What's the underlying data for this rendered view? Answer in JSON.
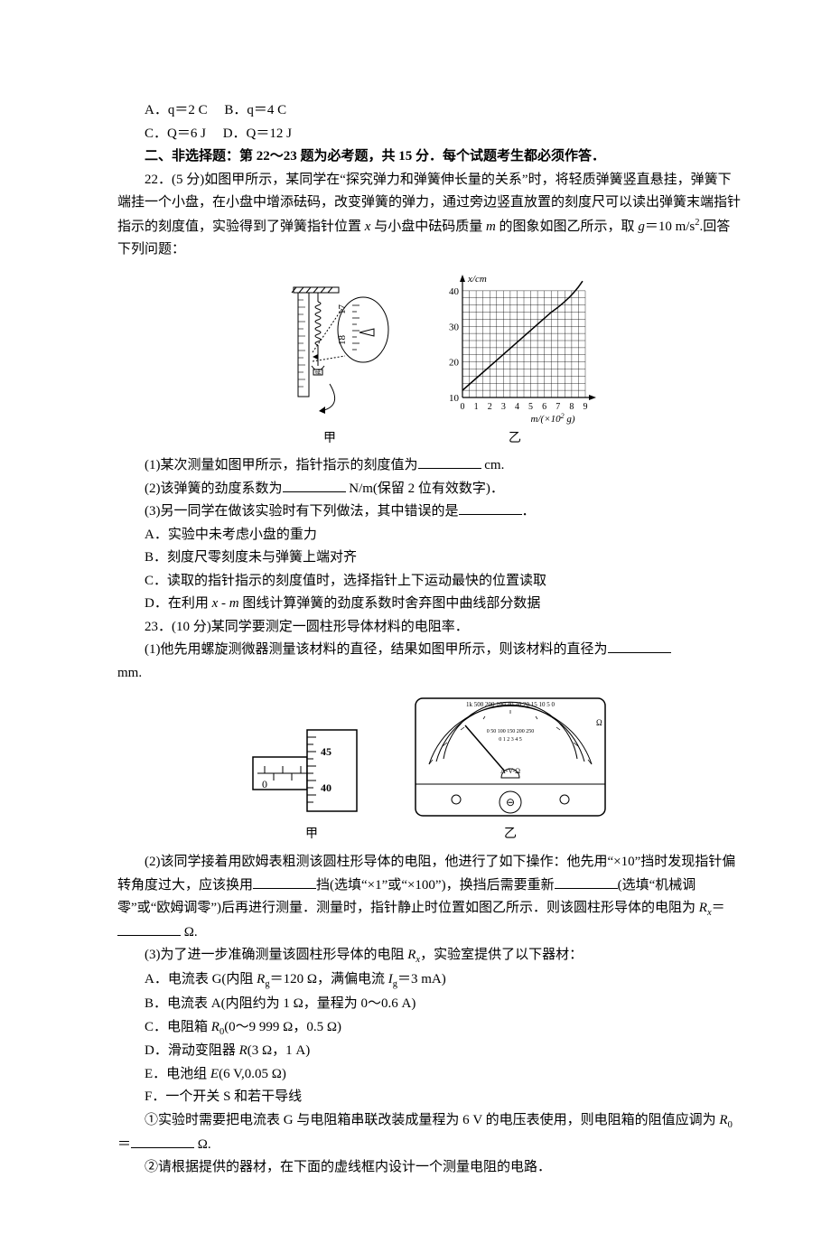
{
  "q21": {
    "optA": "A．q＝2 C",
    "optB": "B．q＝4 C",
    "optC": "C．Q＝6 J",
    "optD": "D．Q＝12 J"
  },
  "section2_title": "二、非选择题：第 22～23 题为必考题，共 15 分．每个试题考生都必须作答．",
  "q22": {
    "stem_pre": "22．(5 分)如图甲所示，某同学在",
    "stem_quote": "“探究弹力和弹簧伸长量的关系”",
    "stem_post": "时，将轻质弹簧竖直悬挂，弹簧下端挂一个小盘，在小盘中增添砝码，改变弹簧的弹力，通过旁边竖直放置的刻度尺可以读出弹簧末端指针指示的刻度值，实验得到了弹簧指针位置 ",
    "stem_x": "x",
    "stem_mid": " 与小盘中砝码质量 ",
    "stem_m": "m",
    "stem_end_pre": " 的图象如图乙所示，取 ",
    "stem_g_label": "g",
    "stem_g_val": "＝10 m/s",
    "stem_sup": "2",
    "stem_tail": ".回答下列问题：",
    "sub1_a": "(1)某次测量如图甲所示，指针指示的刻度值为",
    "sub1_b": " cm.",
    "sub2_a": "(2)该弹簧的劲度系数为",
    "sub2_b": " N/m(保留 2 位有效数字)．",
    "sub3_a": "(3)另一同学在做该实验时有下列做法，其中错误的是",
    "sub3_b": "．",
    "optA": "A．实验中未考虑小盘的重力",
    "optB": "B．刻度尺零刻度未与弹簧上端对齐",
    "optC": "C．读取的指针指示的刻度值时，选择指针上下运动最快的位置读取",
    "optD_a": "D．在利用 ",
    "optD_x": "x",
    "optD_dash": " - ",
    "optD_m": "m",
    "optD_b": " 图线计算弹簧的劲度系数时舍弃图中曲线部分数据",
    "fig_caption_left": "甲",
    "fig_caption_right": "乙",
    "chart": {
      "y_label": "x/cm",
      "x_label_a": "m/(×10",
      "x_label_sup": "2",
      "x_label_b": " g)",
      "x_ticks": [
        0,
        1,
        2,
        3,
        4,
        5,
        6,
        7,
        8,
        9
      ],
      "y_ticks": [
        10,
        20,
        30,
        40
      ],
      "y_max_tick": 40,
      "line_points": [
        [
          0,
          12
        ],
        [
          8,
          39
        ]
      ],
      "curve_start_x": 6.5,
      "grid_color": "#000000",
      "axis_color": "#000000",
      "bg": "#ffffff"
    },
    "ruler": {
      "mark1": "17",
      "mark2": "18"
    }
  },
  "q23": {
    "stem": "23．(10 分)某同学要测定一圆柱形导体材料的电阻率．",
    "sub1_a": "(1)他先用螺旋测微器测量该材料的直径，结果如图甲所示，则该材料的直径为",
    "sub1_b": " mm.",
    "fig_caption_left": "甲",
    "fig_caption_right": "乙",
    "micrometer": {
      "main": "0",
      "tick_top": "45",
      "tick_bot": "40"
    },
    "meter": {
      "top_scale": "1k 500 200 100 40 30 20 15 10 5 0",
      "ohm_sym": "Ω",
      "mid_scale_top": "0 50 100 150 200 250",
      "mid_scale_bot": "0 1 2 3 4 5",
      "av_label": "A-V-Ω",
      "knob": "⊖"
    },
    "sub2_a": "(2)该同学接着用欧姆表粗测该圆柱形导体的电阻，他进行了如下操作：他先用",
    "sub2_q1": "“×10”",
    "sub2_b": "挡时发现指针偏转角度过大，应该换用",
    "sub2_c": "挡(选填",
    "sub2_q2": "“×1”",
    "sub2_d": "或",
    "sub2_q3": "“×100”",
    "sub2_e": ")，换挡后需要重新",
    "sub2_f": "(选填",
    "sub2_q4": "“机械调零”",
    "sub2_g": "或",
    "sub2_q5": "“欧姆调零”",
    "sub2_h": ")后再进行测量．测量时，指针静止时位置如图乙所示．则该圆柱形导体的电阻为 ",
    "sub2_Rx": "R",
    "sub2_xsub": "x",
    "sub2_eq": "＝",
    "sub2_i": " Ω.",
    "sub3_a": "(3)为了进一步准确测量该圆柱形导体的电阻 ",
    "sub3_Rx": "R",
    "sub3_xsub": "x",
    "sub3_b": "，实验室提供了以下器材：",
    "optA_a": "A．电流表 G(内阻 ",
    "optA_R": "R",
    "optA_gsub": "g",
    "optA_b": "＝120 Ω，满偏电流 ",
    "optA_I": "I",
    "optA_gsub2": "g",
    "optA_c": "＝3 mA)",
    "optB": "B．电流表 A(内阻约为 1 Ω，量程为 0～0.6 A)",
    "optC_a": "C．电阻箱 ",
    "optC_R": "R",
    "optC_sub": "0",
    "optC_b": "(0～9 999 Ω，0.5 Ω)",
    "optD_a": "D．滑动变阻器 ",
    "optD_R": "R",
    "optD_b": "(3 Ω，1 A)",
    "optE_a": "E．电池组 ",
    "optE_E": "E",
    "optE_b": "(6 V,0.05 Ω)",
    "optF": "F．一个开关 S 和若干导线",
    "sub3_1a": "①实验时需要把电流表 G 与电阻箱串联改装成量程为 6 V 的电压表使用，则电阻箱的阻值应调为 ",
    "sub3_1R": "R",
    "sub3_1sub": "0",
    "sub3_1eq": "＝",
    "sub3_1b": " Ω.",
    "sub3_2": "②请根据提供的器材，在下面的虚线框内设计一个测量电阻的电路．"
  }
}
